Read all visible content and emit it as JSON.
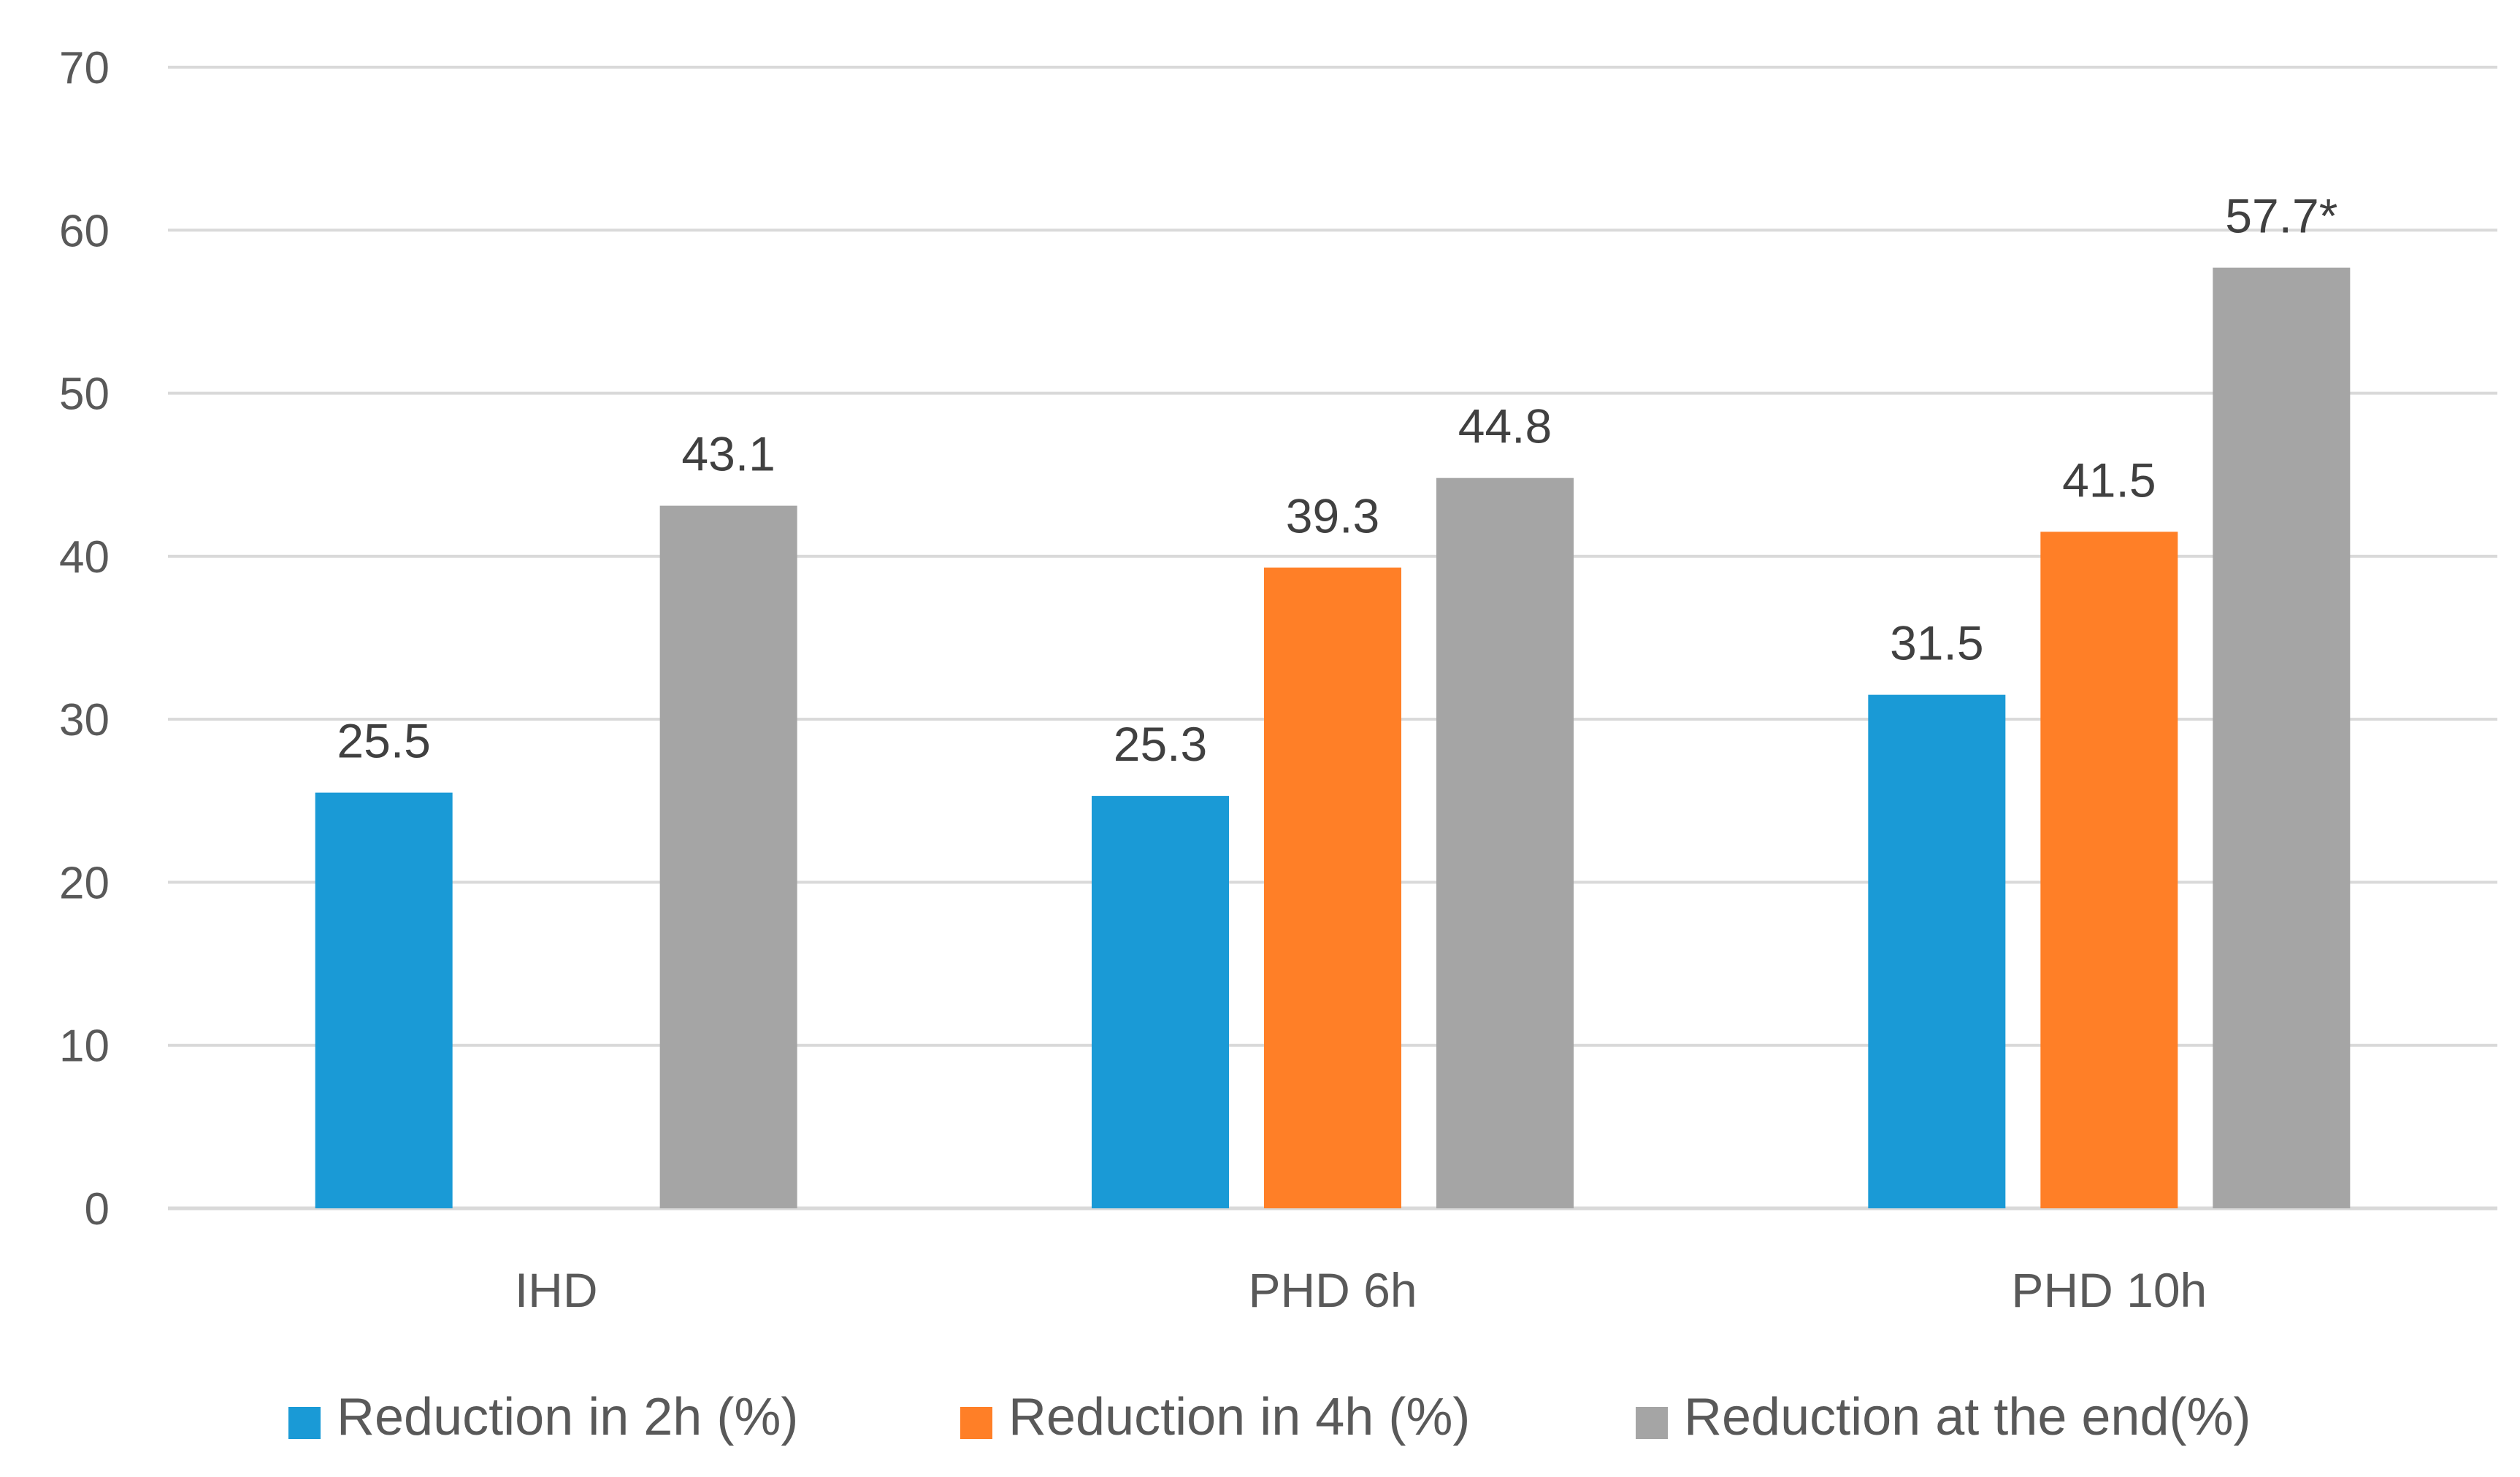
{
  "chart_data": {
    "type": "bar",
    "title": "",
    "xlabel": "",
    "ylabel": "",
    "ylim": [
      0,
      70
    ],
    "yticks": [
      0,
      10,
      20,
      30,
      40,
      50,
      60,
      70
    ],
    "grid": true,
    "legend_position": "bottom",
    "categories": [
      "IHD",
      "PHD 6h",
      "PHD 10h"
    ],
    "series": [
      {
        "name": "Reduction in 2h (%)",
        "color": "#1a9ad6",
        "values": [
          25.5,
          25.3,
          31.5
        ],
        "labels": [
          "25.5",
          "25.3",
          "31.5"
        ]
      },
      {
        "name": "Reduction in 4h (%)",
        "color": "#ff7f27",
        "values": [
          null,
          39.3,
          41.5
        ],
        "labels": [
          null,
          "39.3",
          "41.5"
        ]
      },
      {
        "name": "Reduction at the end(%)",
        "color": "#a5a5a5",
        "values": [
          43.1,
          44.8,
          57.7
        ],
        "labels": [
          "43.1",
          "44.8",
          "57.7*"
        ]
      }
    ]
  }
}
